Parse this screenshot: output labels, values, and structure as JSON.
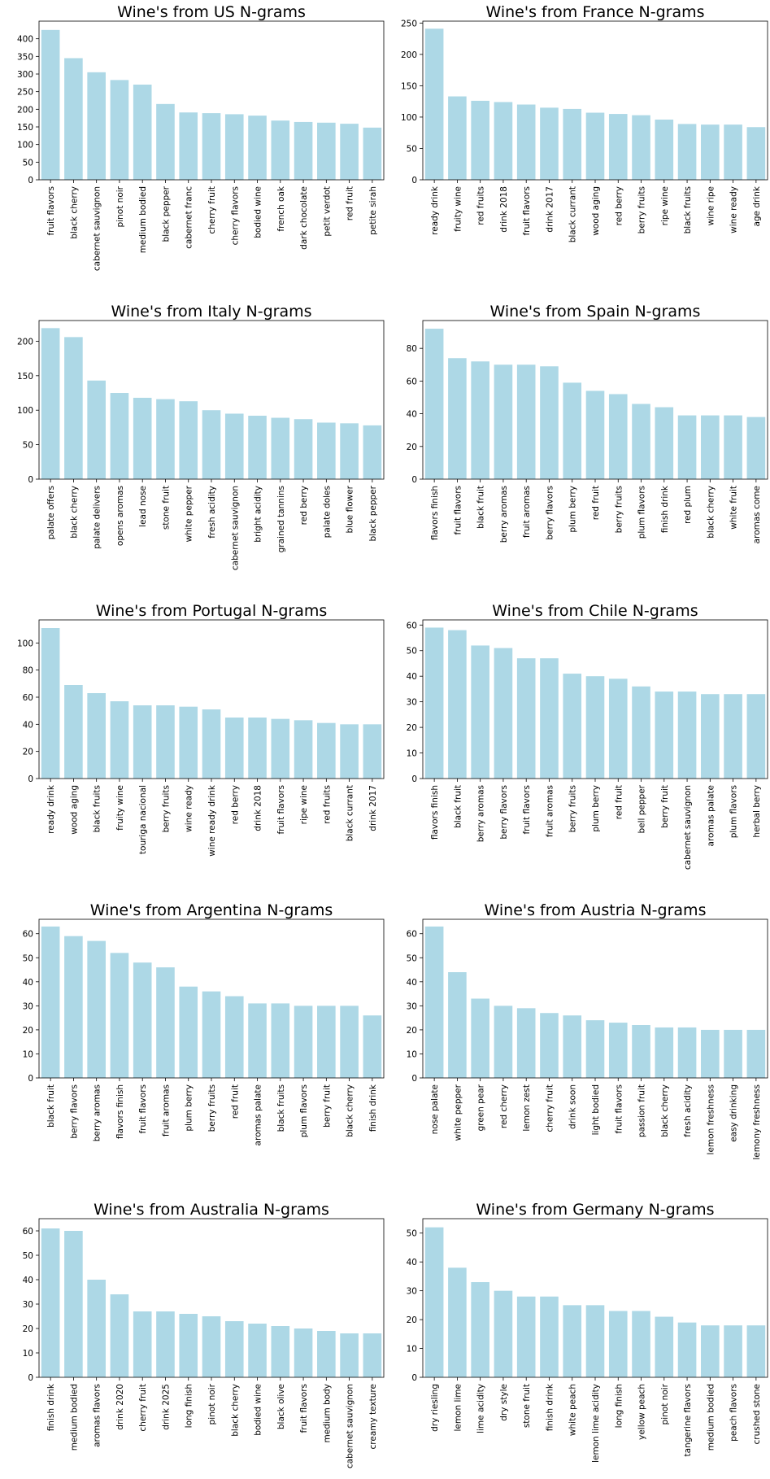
{
  "colors": {
    "bar": "#add8e6",
    "axis": "#000000",
    "background": "#ffffff"
  },
  "chart_data": [
    {
      "type": "bar",
      "title": "Wine's from US N-grams",
      "xlabel": "",
      "ylabel": "",
      "ylim": [
        0,
        450
      ],
      "yticks": [
        0,
        50,
        100,
        150,
        200,
        250,
        300,
        350,
        400
      ],
      "categories": [
        "fruit flavors",
        "black cherry",
        "cabernet sauvignon",
        "pinot noir",
        "medium bodied",
        "black pepper",
        "cabernet franc",
        "cherry fruit",
        "cherry flavors",
        "bodied wine",
        "french oak",
        "dark chocolate",
        "petit verdot",
        "red fruit",
        "petite sirah"
      ],
      "values": [
        425,
        345,
        305,
        283,
        270,
        215,
        191,
        189,
        186,
        182,
        168,
        164,
        162,
        159,
        148
      ]
    },
    {
      "type": "bar",
      "title": "Wine's from France N-grams",
      "xlabel": "",
      "ylabel": "",
      "ylim": [
        0,
        253
      ],
      "yticks": [
        0,
        50,
        100,
        150,
        200,
        250
      ],
      "categories": [
        "ready drink",
        "fruity wine",
        "red fruits",
        "drink 2018",
        "fruit flavors",
        "drink 2017",
        "black currant",
        "wood aging",
        "red berry",
        "berry fruits",
        "ripe wine",
        "black fruits",
        "wine ripe",
        "wine ready",
        "age drink"
      ],
      "values": [
        241,
        133,
        126,
        124,
        120,
        115,
        113,
        107,
        105,
        103,
        96,
        89,
        88,
        88,
        84
      ]
    },
    {
      "type": "bar",
      "title": "Wine's from Italy N-grams",
      "xlabel": "",
      "ylabel": "",
      "ylim": [
        0,
        230
      ],
      "yticks": [
        0,
        50,
        100,
        150,
        200
      ],
      "categories": [
        "palate offers",
        "black cherry",
        "palate delivers",
        "opens aromas",
        "lead nose",
        "stone fruit",
        "white pepper",
        "fresh acidity",
        "cabernet sauvignon",
        "bright acidity",
        "grained tannins",
        "red berry",
        "palate doles",
        "blue flower",
        "black pepper"
      ],
      "values": [
        219,
        206,
        143,
        125,
        118,
        116,
        113,
        100,
        95,
        92,
        89,
        87,
        82,
        81,
        78
      ]
    },
    {
      "type": "bar",
      "title": "Wine's from Spain N-grams",
      "xlabel": "",
      "ylabel": "",
      "ylim": [
        0,
        97
      ],
      "yticks": [
        0,
        20,
        40,
        60,
        80
      ],
      "categories": [
        "flavors finish",
        "fruit flavors",
        "black fruit",
        "berry aromas",
        "fruit aromas",
        "berry flavors",
        "plum berry",
        "red fruit",
        "berry fruits",
        "plum flavors",
        "finish drink",
        "red plum",
        "black cherry",
        "white fruit",
        "aromas come"
      ],
      "values": [
        92,
        74,
        72,
        70,
        70,
        69,
        59,
        54,
        52,
        46,
        44,
        39,
        39,
        39,
        38
      ]
    },
    {
      "type": "bar",
      "title": "Wine's from Portugal N-grams",
      "xlabel": "",
      "ylabel": "",
      "ylim": [
        0,
        117
      ],
      "yticks": [
        0,
        20,
        40,
        60,
        80,
        100
      ],
      "categories": [
        "ready drink",
        "wood aging",
        "black fruits",
        "fruity wine",
        "touriga nacional",
        "berry fruits",
        "wine ready",
        "wine ready drink",
        "red berry",
        "drink 2018",
        "fruit flavors",
        "ripe wine",
        "red fruits",
        "black currant",
        "drink 2017"
      ],
      "values": [
        111,
        69,
        63,
        57,
        54,
        54,
        53,
        51,
        45,
        45,
        44,
        43,
        41,
        40,
        40
      ]
    },
    {
      "type": "bar",
      "title": "Wine's from Chile N-grams",
      "xlabel": "",
      "ylabel": "",
      "ylim": [
        0,
        62
      ],
      "yticks": [
        0,
        10,
        20,
        30,
        40,
        50,
        60
      ],
      "categories": [
        "flavors finish",
        "black fruit",
        "berry aromas",
        "berry flavors",
        "fruit flavors",
        "fruit aromas",
        "berry fruits",
        "plum berry",
        "red fruit",
        "bell pepper",
        "berry fruit",
        "cabernet sauvignon",
        "aromas palate",
        "plum flavors",
        "herbal berry"
      ],
      "values": [
        59,
        58,
        52,
        51,
        47,
        47,
        41,
        40,
        39,
        36,
        34,
        34,
        33,
        33,
        33
      ]
    },
    {
      "type": "bar",
      "title": "Wine's from Argentina N-grams",
      "xlabel": "",
      "ylabel": "",
      "ylim": [
        0,
        66
      ],
      "yticks": [
        0,
        10,
        20,
        30,
        40,
        50,
        60
      ],
      "categories": [
        "black fruit",
        "berry flavors",
        "berry aromas",
        "flavors finish",
        "fruit flavors",
        "fruit aromas",
        "plum berry",
        "berry fruits",
        "red fruit",
        "aromas palate",
        "black fruits",
        "plum flavors",
        "berry fruit",
        "black cherry",
        "finish drink"
      ],
      "values": [
        63,
        59,
        57,
        52,
        48,
        46,
        38,
        36,
        34,
        31,
        31,
        30,
        30,
        30,
        26
      ]
    },
    {
      "type": "bar",
      "title": "Wine's from Austria N-grams",
      "xlabel": "",
      "ylabel": "",
      "ylim": [
        0,
        66
      ],
      "yticks": [
        0,
        10,
        20,
        30,
        40,
        50,
        60
      ],
      "categories": [
        "nose palate",
        "white pepper",
        "green pear",
        "red cherry",
        "lemon zest",
        "cherry fruit",
        "drink soon",
        "light bodied",
        "fruit flavors",
        "passion fruit",
        "black cherry",
        "fresh acidity",
        "lemon freshness",
        "easy drinking",
        "lemony freshness"
      ],
      "values": [
        63,
        44,
        33,
        30,
        29,
        27,
        26,
        24,
        23,
        22,
        21,
        21,
        20,
        20,
        20
      ]
    },
    {
      "type": "bar",
      "title": "Wine's from Australia N-grams",
      "xlabel": "",
      "ylabel": "",
      "ylim": [
        0,
        65
      ],
      "yticks": [
        0,
        10,
        20,
        30,
        40,
        50,
        60
      ],
      "categories": [
        "finish drink",
        "medium bodied",
        "aromas flavors",
        "drink 2020",
        "cherry fruit",
        "drink 2025",
        "long finish",
        "pinot noir",
        "black cherry",
        "bodied wine",
        "black olive",
        "fruit flavors",
        "medium body",
        "cabernet sauvignon",
        "creamy texture"
      ],
      "values": [
        61,
        60,
        40,
        34,
        27,
        27,
        26,
        25,
        23,
        22,
        21,
        20,
        19,
        18,
        18
      ]
    },
    {
      "type": "bar",
      "title": "Wine's from Germany N-grams",
      "xlabel": "",
      "ylabel": "",
      "ylim": [
        0,
        55
      ],
      "yticks": [
        0,
        10,
        20,
        30,
        40,
        50
      ],
      "categories": [
        "dry riesling",
        "lemon lime",
        "lime acidity",
        "dry style",
        "stone fruit",
        "finish drink",
        "white peach",
        "lemon lime acidity",
        "long finish",
        "yellow peach",
        "pinot noir",
        "tangerine flavors",
        "medium bodied",
        "peach flavors",
        "crushed stone"
      ],
      "values": [
        52,
        38,
        33,
        30,
        28,
        28,
        25,
        25,
        23,
        23,
        21,
        19,
        18,
        18,
        18
      ]
    }
  ]
}
